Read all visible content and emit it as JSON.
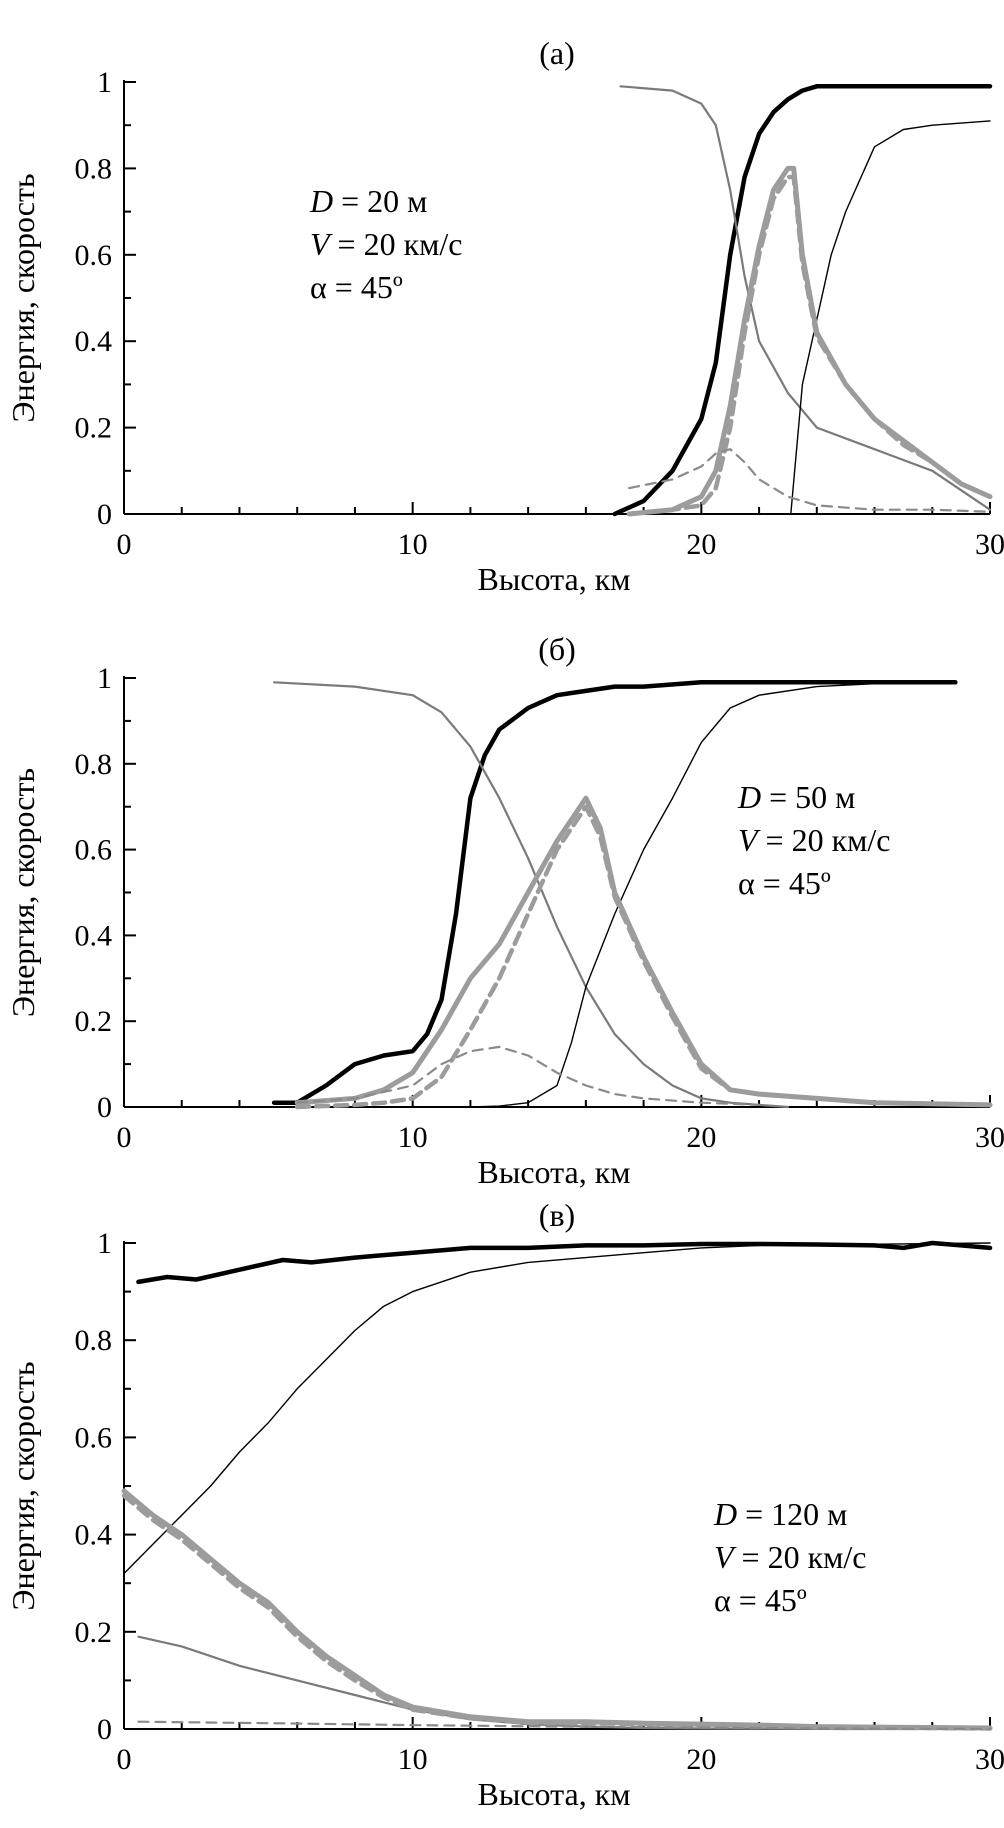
{
  "colors": {
    "black_thick": "#000000",
    "gray_thin": "#7a7a7a",
    "black_thin": "#000000",
    "gray_thick": "#9c9c9c",
    "gray_dashed_thick": "#9c9c9c",
    "gray_dashed_thin": "#8a8a8a"
  },
  "chart_data": [
    {
      "type": "line",
      "title": "(а)",
      "xlabel": "Высота, км",
      "ylabel": "Энергия, скорость",
      "xlim": [
        0,
        30
      ],
      "ylim": [
        0,
        1
      ],
      "xticks": [
        "0",
        "10",
        "20",
        "30"
      ],
      "yticks": [
        "0",
        "0.2",
        "0.4",
        "0.6",
        "0.8",
        "1"
      ],
      "annotation": [
        {
          "sym": "D",
          "rest": " = 20 м"
        },
        {
          "sym": "V",
          "rest": " = 20 км/с"
        },
        {
          "sym": "",
          "rest": "α = 45º"
        }
      ],
      "series": [
        {
          "style": "black_thick",
          "x": [
            17,
            18,
            19,
            20,
            20.5,
            21,
            21.5,
            22,
            22.5,
            23,
            23.5,
            24,
            26,
            28,
            30
          ],
          "y": [
            0,
            0.03,
            0.1,
            0.22,
            0.35,
            0.6,
            0.78,
            0.88,
            0.93,
            0.96,
            0.98,
            0.99,
            0.99,
            0.99,
            0.99
          ]
        },
        {
          "style": "gray_thin",
          "x": [
            17.2,
            19,
            20,
            20.5,
            21,
            21.5,
            22,
            23,
            24,
            26,
            28,
            30
          ],
          "y": [
            0.99,
            0.98,
            0.95,
            0.9,
            0.75,
            0.55,
            0.4,
            0.28,
            0.2,
            0.15,
            0.1,
            0.01
          ]
        },
        {
          "style": "black_thin",
          "x": [
            23.1,
            23.5,
            24,
            24.5,
            25,
            26,
            27,
            28,
            30
          ],
          "y": [
            0,
            0.3,
            0.45,
            0.6,
            0.7,
            0.85,
            0.89,
            0.9,
            0.91
          ]
        },
        {
          "style": "gray_thick",
          "x": [
            17.5,
            19,
            20,
            20.5,
            21,
            21.5,
            22,
            22.5,
            23,
            23.2,
            23.5,
            24,
            25,
            26,
            27,
            28,
            29,
            30
          ],
          "y": [
            0,
            0.01,
            0.04,
            0.1,
            0.25,
            0.45,
            0.62,
            0.75,
            0.8,
            0.8,
            0.6,
            0.42,
            0.3,
            0.22,
            0.17,
            0.12,
            0.07,
            0.04
          ]
        },
        {
          "style": "gray_dashed_thick",
          "x": [
            17.5,
            19,
            20,
            20.5,
            21,
            21.5,
            22,
            22.5,
            23,
            23.2,
            23.5,
            24,
            25,
            26,
            27,
            28,
            29,
            30
          ],
          "y": [
            0,
            0.01,
            0.02,
            0.06,
            0.2,
            0.42,
            0.6,
            0.73,
            0.78,
            0.78,
            0.58,
            0.41,
            0.3,
            0.22,
            0.16,
            0.12,
            0.07,
            0.04
          ]
        },
        {
          "style": "gray_dashed_thin",
          "x": [
            17.5,
            19,
            20,
            20.5,
            21,
            21.5,
            22,
            23,
            24,
            26,
            28,
            30
          ],
          "y": [
            0.06,
            0.08,
            0.11,
            0.14,
            0.15,
            0.12,
            0.08,
            0.04,
            0.02,
            0.01,
            0.01,
            0.005
          ]
        }
      ]
    },
    {
      "type": "line",
      "title": "(б)",
      "xlabel": "Высота, км",
      "ylabel": "Энергия, скорость",
      "xlim": [
        0,
        30
      ],
      "ylim": [
        0,
        1
      ],
      "xticks": [
        "0",
        "10",
        "20",
        "30"
      ],
      "yticks": [
        "0",
        "0.2",
        "0.4",
        "0.6",
        "0.8",
        "1"
      ],
      "annotation": [
        {
          "sym": "D",
          "rest": " = 50 м"
        },
        {
          "sym": "V",
          "rest": " = 20 км/с"
        },
        {
          "sym": "",
          "rest": "α = 45º"
        }
      ],
      "series": [
        {
          "style": "black_thick",
          "x": [
            5.2,
            6,
            7,
            8,
            9,
            10,
            10.5,
            11,
            11.5,
            12,
            12.5,
            13,
            14,
            15,
            16,
            17,
            18,
            20,
            22,
            25,
            28.8
          ],
          "y": [
            0.01,
            0.01,
            0.05,
            0.1,
            0.12,
            0.13,
            0.17,
            0.25,
            0.45,
            0.72,
            0.82,
            0.88,
            0.93,
            0.96,
            0.97,
            0.98,
            0.98,
            0.99,
            0.99,
            0.99,
            0.99
          ]
        },
        {
          "style": "gray_thin",
          "x": [
            5.2,
            8,
            10,
            11,
            12,
            13,
            14,
            15,
            16,
            17,
            18,
            19,
            20,
            21,
            22,
            23
          ],
          "y": [
            0.99,
            0.98,
            0.96,
            0.92,
            0.84,
            0.72,
            0.58,
            0.42,
            0.28,
            0.17,
            0.1,
            0.05,
            0.02,
            0.01,
            0.005,
            0
          ]
        },
        {
          "style": "black_thin",
          "x": [
            12,
            13,
            14,
            15,
            15.5,
            16,
            17,
            18,
            19,
            20,
            21,
            22,
            24,
            27
          ],
          "y": [
            0,
            0.002,
            0.01,
            0.05,
            0.15,
            0.28,
            0.45,
            0.6,
            0.72,
            0.85,
            0.93,
            0.96,
            0.98,
            0.99
          ]
        },
        {
          "style": "gray_thick",
          "x": [
            6,
            8,
            9,
            10,
            11,
            12,
            13,
            14,
            15,
            16,
            16.5,
            17,
            18,
            19,
            20,
            21,
            22,
            24,
            26,
            30
          ],
          "y": [
            0.01,
            0.02,
            0.04,
            0.08,
            0.18,
            0.3,
            0.38,
            0.5,
            0.62,
            0.72,
            0.65,
            0.5,
            0.35,
            0.22,
            0.1,
            0.04,
            0.03,
            0.02,
            0.01,
            0.005
          ]
        },
        {
          "style": "gray_dashed_thick",
          "x": [
            6,
            8,
            9,
            10,
            11,
            12,
            13,
            14,
            15,
            16,
            16.5,
            17,
            18,
            19,
            20,
            21,
            22,
            24,
            26,
            30
          ],
          "y": [
            0,
            0.005,
            0.01,
            0.02,
            0.07,
            0.18,
            0.3,
            0.45,
            0.6,
            0.7,
            0.63,
            0.49,
            0.34,
            0.21,
            0.09,
            0.04,
            0.03,
            0.02,
            0.01,
            0.005
          ]
        },
        {
          "style": "gray_dashed_thin",
          "x": [
            6,
            8,
            10,
            11,
            12,
            13,
            14,
            15,
            16,
            17,
            18,
            20,
            22
          ],
          "y": [
            0.01,
            0.02,
            0.05,
            0.1,
            0.13,
            0.14,
            0.12,
            0.08,
            0.05,
            0.03,
            0.02,
            0.01,
            0.005
          ]
        }
      ]
    },
    {
      "type": "line",
      "title": "(в)",
      "xlabel": "Высота, км",
      "ylabel": "Энергия, скорость",
      "xlim": [
        0,
        30
      ],
      "ylim": [
        0,
        1
      ],
      "xticks": [
        "0",
        "10",
        "20",
        "30"
      ],
      "yticks": [
        "0",
        "0.2",
        "0.4",
        "0.6",
        "0.8",
        "1"
      ],
      "annotation": [
        {
          "sym": "D",
          "rest": " = 120 м"
        },
        {
          "sym": "V",
          "rest": " = 20 км/с"
        },
        {
          "sym": "",
          "rest": "α = 45º"
        }
      ],
      "series": [
        {
          "style": "black_thick",
          "x": [
            0.5,
            1.5,
            2.5,
            4,
            5.5,
            6.5,
            8,
            10,
            12,
            14,
            16,
            18,
            20,
            22,
            24,
            26,
            27,
            28,
            29,
            30
          ],
          "y": [
            0.92,
            0.93,
            0.925,
            0.945,
            0.965,
            0.96,
            0.97,
            0.98,
            0.99,
            0.99,
            0.995,
            0.995,
            0.998,
            0.998,
            0.997,
            0.995,
            0.99,
            1.0,
            0.995,
            0.99
          ]
        },
        {
          "style": "gray_thin",
          "x": [
            0.5,
            2,
            4,
            6,
            8,
            10,
            12,
            14,
            16,
            18,
            20,
            25,
            30
          ],
          "y": [
            0.19,
            0.17,
            0.13,
            0.1,
            0.07,
            0.04,
            0.02,
            0.01,
            0.005,
            0.002,
            0.001,
            0,
            0
          ]
        },
        {
          "style": "black_thin",
          "x": [
            0,
            1,
            2,
            3,
            4,
            5,
            6,
            7,
            8,
            9,
            10,
            12,
            14,
            16,
            18,
            20,
            22,
            30
          ],
          "y": [
            0.32,
            0.38,
            0.44,
            0.5,
            0.57,
            0.63,
            0.7,
            0.76,
            0.82,
            0.87,
            0.9,
            0.94,
            0.96,
            0.97,
            0.98,
            0.99,
            0.995,
            1.0
          ]
        },
        {
          "style": "gray_thick",
          "x": [
            0,
            1,
            2,
            3,
            4,
            5,
            6,
            7,
            8,
            9,
            10,
            12,
            14,
            16,
            18,
            20,
            22,
            24,
            26,
            28,
            30
          ],
          "y": [
            0.49,
            0.44,
            0.4,
            0.35,
            0.3,
            0.26,
            0.2,
            0.15,
            0.11,
            0.07,
            0.045,
            0.025,
            0.015,
            0.015,
            0.012,
            0.01,
            0.008,
            0.005,
            0.004,
            0.003,
            0.002
          ]
        },
        {
          "style": "gray_dashed_thick",
          "x": [
            0,
            1,
            2,
            3,
            4,
            5,
            6,
            7,
            8,
            9,
            10,
            12,
            14,
            16,
            18,
            20,
            22,
            24,
            26,
            28,
            30
          ],
          "y": [
            0.48,
            0.43,
            0.39,
            0.34,
            0.29,
            0.25,
            0.19,
            0.14,
            0.1,
            0.065,
            0.04,
            0.022,
            0.013,
            0.012,
            0.01,
            0.008,
            0.006,
            0.004,
            0.003,
            0.002,
            0.001
          ]
        },
        {
          "style": "gray_dashed_thin",
          "x": [
            0.5,
            5,
            10,
            15,
            20,
            25,
            30
          ],
          "y": [
            0.015,
            0.012,
            0.008,
            0.005,
            0.003,
            0.001,
            0
          ]
        }
      ]
    }
  ]
}
